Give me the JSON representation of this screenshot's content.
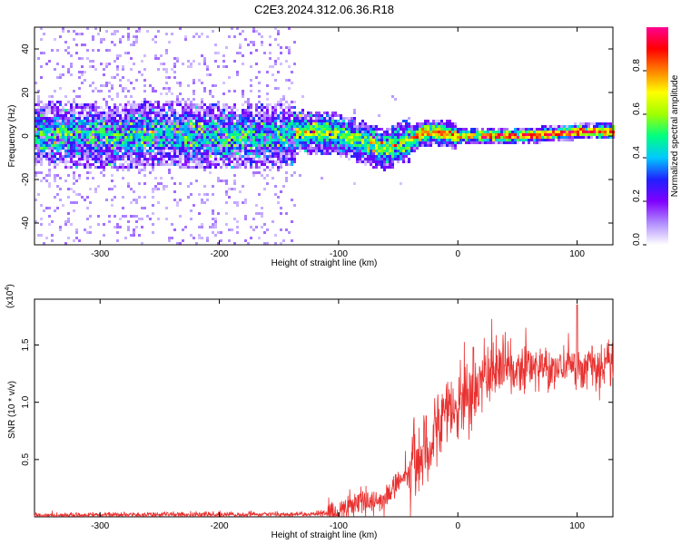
{
  "figure": {
    "title": "C2E3.2024.312.06.36.R18"
  },
  "chart_data": [
    {
      "type": "heatmap",
      "xlabel": "Height of straight line (km)",
      "ylabel": "Frequency (Hz)",
      "xlim": [
        -355,
        130
      ],
      "ylim": [
        -50,
        50
      ],
      "x_ticks": [
        -300,
        -200,
        -100,
        0,
        100
      ],
      "y_ticks": [
        -40,
        -20,
        0,
        20,
        40
      ],
      "colorbar": {
        "label": "Normalized spectral amplitude",
        "ticks": [
          "0.0",
          "0.2",
          "0.4",
          "0.6",
          "0.8"
        ],
        "tick_values": [
          0.0,
          0.2,
          0.4,
          0.6,
          0.8
        ],
        "range": [
          0,
          1
        ],
        "colormap": [
          "#ffffff",
          "#b08cff",
          "#8000ff",
          "#2020ff",
          "#00c8ff",
          "#00ff80",
          "#a0ff00",
          "#ffff00",
          "#ff8000",
          "#ff0000",
          "#ff0090"
        ]
      },
      "ridge": {
        "x": [
          -350,
          -300,
          -250,
          -200,
          -150,
          -130,
          -100,
          -80,
          -60,
          -50,
          -40,
          -30,
          -20,
          -10,
          0,
          20,
          50,
          80,
          100,
          130
        ],
        "y": [
          1,
          0,
          1,
          0,
          0,
          2,
          1,
          -3,
          -6,
          -4,
          -2,
          1,
          2,
          1,
          0,
          0,
          0,
          1,
          2,
          2
        ]
      },
      "grid": false
    },
    {
      "type": "line",
      "xlabel": "Height of straight line (km)",
      "ylabel": "SNR (10 * v/v)",
      "multiplier_label": "(x10",
      "multiplier_exponent": "4",
      "multiplier_close": ")",
      "xlim": [
        -355,
        130
      ],
      "ylim": [
        0,
        1.9
      ],
      "x_ticks": [
        -300,
        -200,
        -100,
        0,
        100
      ],
      "y_ticks": [
        0.5,
        1.0,
        1.5
      ],
      "y_tick_labels": [
        "0.5",
        "1.0",
        "1.5"
      ],
      "color": "#e8312f",
      "series_profile": {
        "x": [
          -355,
          -300,
          -250,
          -200,
          -150,
          -120,
          -100,
          -90,
          -80,
          -70,
          -60,
          -50,
          -40,
          -30,
          -20,
          -10,
          0,
          10,
          20,
          30,
          40,
          50,
          60,
          70,
          80,
          90,
          100,
          110,
          120,
          130
        ],
        "y": [
          0.01,
          0.015,
          0.02,
          0.02,
          0.02,
          0.025,
          0.04,
          0.08,
          0.14,
          0.12,
          0.18,
          0.3,
          0.42,
          0.55,
          0.75,
          0.9,
          1.0,
          1.08,
          1.2,
          1.28,
          1.3,
          1.28,
          1.32,
          1.3,
          1.3,
          1.32,
          1.3,
          1.3,
          1.32,
          1.3
        ]
      },
      "peaks": [
        {
          "x": -82,
          "y": 0.2
        },
        {
          "x": 13,
          "y": 1.48
        },
        {
          "x": 100,
          "y": 1.85
        }
      ]
    }
  ]
}
